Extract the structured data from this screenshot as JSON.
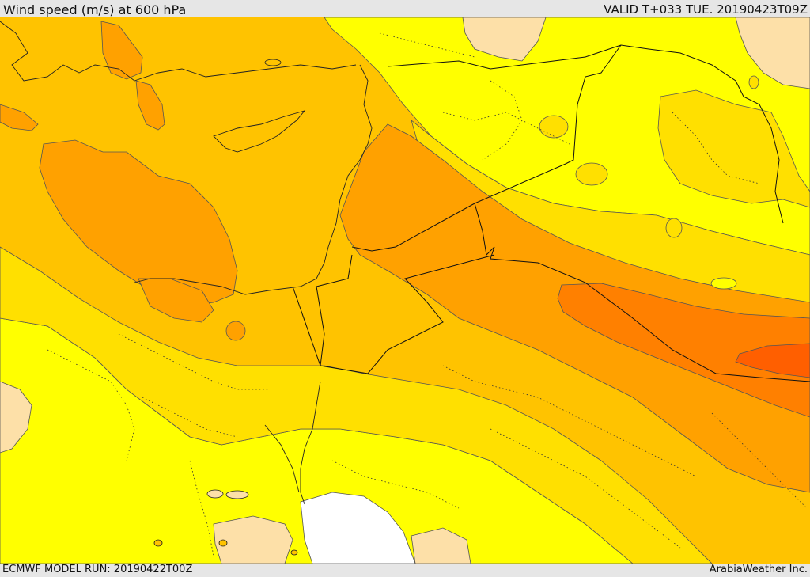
{
  "header": {
    "title": "Wind speed (m/s) at 600 hPa",
    "valid": "VALID T+033 TUE. 20190423T09Z"
  },
  "footer": {
    "model_run": "ECMWF MODEL RUN: 20190422T00Z",
    "credit": "ArabiaWeather Inc."
  },
  "map": {
    "variable": "wind speed",
    "level": "600 hPa",
    "colors": {
      "lightest": "#fde0a8",
      "yellow": "#ffff00",
      "light_gold": "#ffe000",
      "gold": "#ffc300",
      "orange": "#ffa100",
      "dark_orange": "#ff8000",
      "red_orange": "#ff5f00",
      "sea_ice_white": "#ffffff",
      "contour_line": "#555555",
      "border_line": "#111111"
    }
  }
}
